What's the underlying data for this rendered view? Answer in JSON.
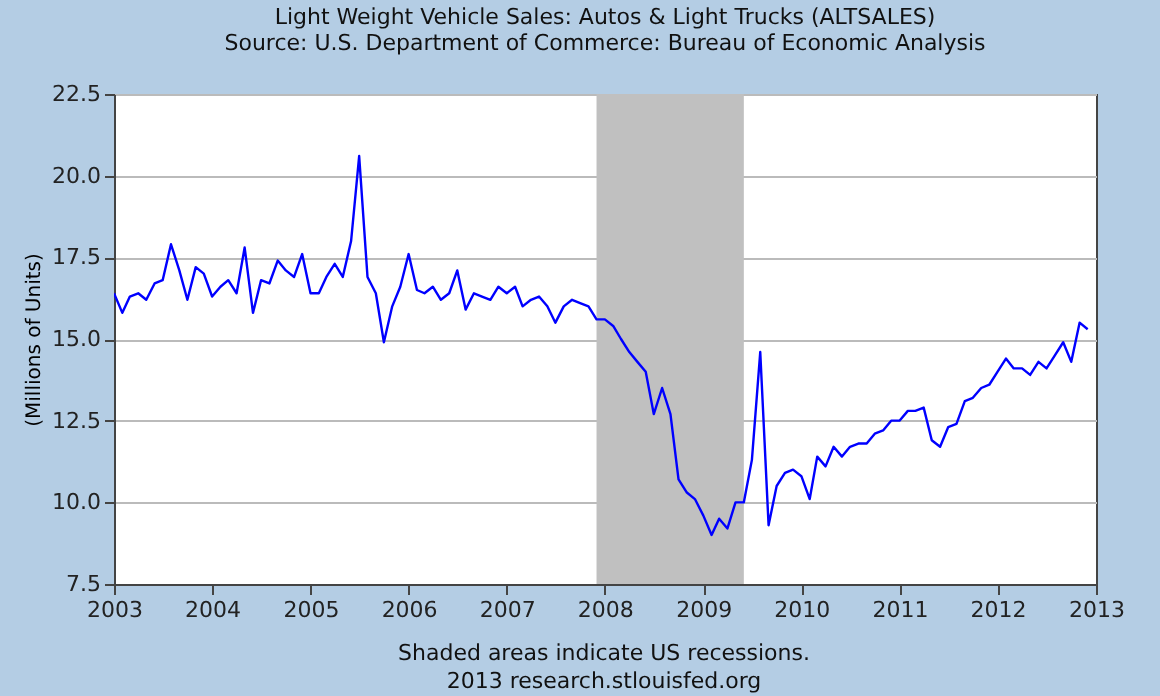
{
  "chart_data": {
    "type": "line",
    "title": "Light Weight Vehicle Sales: Autos & Light Trucks (ALTSALES)",
    "subtitle": "Source: U.S. Department of Commerce: Bureau of Economic Analysis",
    "ylabel": "(Millions of Units)",
    "annotations": [
      "Shaded areas indicate US recessions.",
      "2013 research.stlouisfed.org"
    ],
    "x": [
      "2003-01",
      "2003-02",
      "2003-03",
      "2003-04",
      "2003-05",
      "2003-06",
      "2003-07",
      "2003-08",
      "2003-09",
      "2003-10",
      "2003-11",
      "2003-12",
      "2004-01",
      "2004-02",
      "2004-03",
      "2004-04",
      "2004-05",
      "2004-06",
      "2004-07",
      "2004-08",
      "2004-09",
      "2004-10",
      "2004-11",
      "2004-12",
      "2005-01",
      "2005-02",
      "2005-03",
      "2005-04",
      "2005-05",
      "2005-06",
      "2005-07",
      "2005-08",
      "2005-09",
      "2005-10",
      "2005-11",
      "2005-12",
      "2006-01",
      "2006-02",
      "2006-03",
      "2006-04",
      "2006-05",
      "2006-06",
      "2006-07",
      "2006-08",
      "2006-09",
      "2006-10",
      "2006-11",
      "2006-12",
      "2007-01",
      "2007-02",
      "2007-03",
      "2007-04",
      "2007-05",
      "2007-06",
      "2007-07",
      "2007-08",
      "2007-09",
      "2007-10",
      "2007-11",
      "2007-12",
      "2008-01",
      "2008-02",
      "2008-03",
      "2008-04",
      "2008-05",
      "2008-06",
      "2008-07",
      "2008-08",
      "2008-09",
      "2008-10",
      "2008-11",
      "2008-12",
      "2009-01",
      "2009-02",
      "2009-03",
      "2009-04",
      "2009-05",
      "2009-06",
      "2009-07",
      "2009-08",
      "2009-09",
      "2009-10",
      "2009-11",
      "2009-12",
      "2010-01",
      "2010-02",
      "2010-03",
      "2010-04",
      "2010-05",
      "2010-06",
      "2010-07",
      "2010-08",
      "2010-09",
      "2010-10",
      "2010-11",
      "2010-12",
      "2011-01",
      "2011-02",
      "2011-03",
      "2011-04",
      "2011-05",
      "2011-06",
      "2011-07",
      "2011-08",
      "2011-09",
      "2011-10",
      "2011-11",
      "2011-12",
      "2012-01",
      "2012-02",
      "2012-03",
      "2012-04",
      "2012-05",
      "2012-06",
      "2012-07",
      "2012-08",
      "2012-09",
      "2012-10",
      "2012-11",
      "2012-12"
    ],
    "series": [
      {
        "color": "#0000ff",
        "values": [
          16.4,
          15.8,
          16.3,
          16.4,
          16.2,
          16.7,
          16.8,
          17.9,
          17.1,
          16.2,
          17.2,
          17.0,
          16.3,
          16.6,
          16.8,
          16.4,
          17.8,
          15.8,
          16.8,
          16.7,
          17.4,
          17.1,
          16.9,
          17.6,
          16.4,
          16.4,
          16.9,
          17.3,
          16.9,
          18.0,
          20.6,
          16.9,
          16.4,
          14.9,
          16.0,
          16.6,
          17.6,
          16.5,
          16.4,
          16.6,
          16.2,
          16.4,
          17.1,
          15.9,
          16.4,
          16.3,
          16.2,
          16.6,
          16.4,
          16.6,
          16.0,
          16.2,
          16.3,
          16.0,
          15.5,
          16.0,
          16.2,
          16.1,
          16.0,
          15.6,
          15.6,
          15.4,
          15.0,
          14.6,
          14.3,
          14.0,
          12.7,
          13.5,
          12.7,
          10.7,
          10.3,
          10.1,
          9.6,
          9.0,
          9.5,
          9.2,
          10.0,
          10.0,
          11.3,
          14.6,
          9.3,
          10.5,
          10.9,
          11.0,
          10.8,
          10.1,
          11.4,
          11.1,
          11.7,
          11.4,
          11.7,
          11.8,
          11.8,
          12.1,
          12.2,
          12.5,
          12.5,
          12.8,
          12.8,
          12.9,
          11.9,
          11.7,
          12.3,
          12.4,
          13.1,
          13.2,
          13.5,
          13.6,
          14.0,
          14.4,
          14.1,
          14.1,
          13.9,
          14.3,
          14.1,
          14.5,
          14.9,
          14.3,
          15.5,
          15.3
        ]
      }
    ],
    "xlim": [
      "2003-01",
      "2013-01"
    ],
    "xticks": [
      "2003",
      "2004",
      "2005",
      "2006",
      "2007",
      "2008",
      "2009",
      "2010",
      "2011",
      "2012",
      "2013"
    ],
    "ylim": [
      7.5,
      22.5
    ],
    "yticks": [
      {
        "value": 7.5,
        "label": "7.5"
      },
      {
        "value": 10,
        "label": "10.0"
      },
      {
        "value": 12.5,
        "label": "12.5"
      },
      {
        "value": 15,
        "label": "15.0"
      },
      {
        "value": 17.5,
        "label": "17.5"
      },
      {
        "value": 20,
        "label": "20.0"
      },
      {
        "value": 22.5,
        "label": "22.5"
      }
    ],
    "bands": [
      {
        "axis": "x",
        "from": "2007-12",
        "to": "2009-06",
        "color": "#c0c0c0"
      }
    ],
    "grid": "y",
    "line_style": "solid"
  }
}
